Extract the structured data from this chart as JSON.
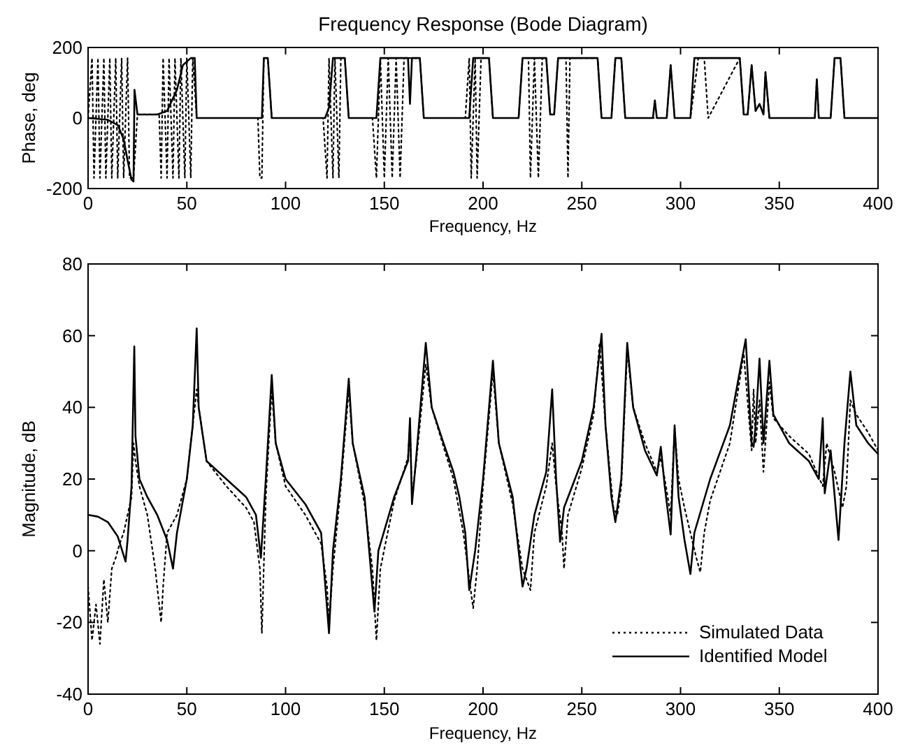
{
  "chart_data": [
    {
      "type": "line",
      "title": "Frequency Response (Bode Diagram)",
      "xlabel": "Frequency, Hz",
      "ylabel": "Phase, deg",
      "xlim": [
        0,
        400
      ],
      "xticks": [
        0,
        50,
        100,
        150,
        200,
        250,
        300,
        350,
        400
      ],
      "ylim": [
        -200,
        200
      ],
      "yticks": [
        -200,
        0,
        200
      ],
      "grid": false,
      "legend": false,
      "series": [
        {
          "color": "#000000",
          "line_style": "dotted",
          "x": [
            0,
            2,
            3,
            5,
            6,
            8,
            9,
            11,
            12,
            14,
            15,
            17,
            18,
            20,
            21,
            23,
            25,
            36,
            37,
            38,
            40,
            41,
            43,
            44,
            46,
            47,
            49,
            50,
            52,
            53,
            55,
            86,
            87,
            88,
            89,
            91,
            93,
            119,
            121,
            122,
            124,
            125,
            127,
            128,
            130,
            132,
            144,
            146,
            148,
            150,
            152,
            154,
            156,
            158,
            160,
            162,
            164,
            168,
            170,
            191,
            193,
            194,
            196,
            197,
            199,
            203,
            205,
            218,
            220,
            223,
            224,
            226,
            228,
            230,
            232,
            234,
            236,
            238,
            242,
            243,
            244,
            258,
            260,
            265,
            267,
            270,
            272,
            286,
            293,
            295,
            297,
            305,
            309,
            312,
            314,
            330,
            332,
            334,
            336,
            338,
            340,
            342,
            343,
            345,
            368,
            369,
            370,
            376,
            378,
            381,
            383,
            400
          ],
          "values": [
            0,
            170,
            -170,
            170,
            -170,
            170,
            -170,
            170,
            -170,
            170,
            -170,
            170,
            -170,
            170,
            -170,
            -170,
            10,
            10,
            -170,
            170,
            -170,
            170,
            -170,
            170,
            -170,
            170,
            -170,
            170,
            -170,
            170,
            0,
            0,
            -170,
            -170,
            170,
            170,
            0,
            0,
            -170,
            170,
            -170,
            170,
            -170,
            170,
            170,
            0,
            0,
            -170,
            170,
            -170,
            170,
            -170,
            170,
            -170,
            170,
            170,
            170,
            170,
            0,
            0,
            170,
            -170,
            170,
            -170,
            170,
            170,
            0,
            0,
            170,
            170,
            -170,
            170,
            -170,
            170,
            170,
            10,
            10,
            170,
            170,
            -170,
            170,
            170,
            0,
            0,
            170,
            170,
            0,
            0,
            0,
            150,
            0,
            0,
            170,
            170,
            0,
            170,
            10,
            10,
            150,
            20,
            40,
            10,
            130,
            0,
            0,
            110,
            0,
            0,
            170,
            170,
            0,
            0
          ]
        },
        {
          "color": "#000000",
          "line_style": "solid",
          "x": [
            0,
            10,
            15,
            18,
            20,
            22,
            23,
            23.5,
            25,
            35,
            40,
            45,
            48,
            52,
            54,
            55,
            80,
            85,
            88,
            89,
            91,
            93,
            120,
            122,
            124,
            130,
            132,
            146,
            148,
            160,
            162,
            163,
            164,
            168,
            170,
            193,
            195,
            203,
            205,
            218,
            220,
            232,
            234,
            236,
            238,
            258,
            260,
            265,
            267,
            270,
            272,
            286,
            287,
            288,
            293,
            295,
            297,
            305,
            307,
            330,
            332,
            334,
            336,
            338,
            340,
            342,
            343,
            345,
            368,
            369,
            370,
            376,
            378,
            381,
            383,
            400
          ],
          "values": [
            0,
            -5,
            -20,
            -60,
            -120,
            -175,
            -180,
            80,
            10,
            10,
            20,
            80,
            150,
            170,
            170,
            0,
            0,
            0,
            0,
            170,
            170,
            0,
            0,
            30,
            170,
            170,
            0,
            0,
            170,
            170,
            170,
            40,
            170,
            170,
            0,
            0,
            170,
            170,
            0,
            0,
            170,
            170,
            10,
            10,
            170,
            170,
            0,
            0,
            170,
            170,
            0,
            0,
            50,
            0,
            0,
            150,
            0,
            0,
            170,
            170,
            10,
            10,
            150,
            20,
            40,
            10,
            130,
            0,
            0,
            110,
            0,
            0,
            170,
            170,
            0,
            0
          ]
        }
      ]
    },
    {
      "type": "line",
      "xlabel": "Frequency, Hz",
      "ylabel": "Magnitude, dB",
      "xlim": [
        0,
        400
      ],
      "xticks": [
        0,
        50,
        100,
        150,
        200,
        250,
        300,
        350,
        400
      ],
      "ylim": [
        -40,
        80
      ],
      "yticks": [
        -40,
        -20,
        0,
        20,
        40,
        60,
        80
      ],
      "grid": false,
      "legend": "bottom right",
      "series": [
        {
          "name": "Simulated Data",
          "color": "#000000",
          "line_style": "dotted",
          "x": [
            0,
            2,
            4,
            6,
            8,
            10,
            12,
            14,
            16,
            18,
            20,
            22,
            23,
            24,
            26,
            30,
            34,
            37,
            38,
            40,
            43,
            45,
            50,
            53,
            55,
            56,
            60,
            70,
            80,
            84,
            87,
            88,
            90,
            93,
            95,
            100,
            110,
            118,
            121,
            122,
            124,
            128,
            132,
            134,
            140,
            144,
            146,
            148,
            155,
            162,
            163,
            164,
            166,
            171,
            174,
            180,
            185,
            190,
            194,
            195,
            197,
            200,
            205,
            208,
            215,
            220,
            222,
            224,
            226,
            232,
            235,
            237,
            240,
            241,
            243,
            250,
            256,
            259,
            262,
            266,
            268,
            270,
            273,
            276,
            282,
            288,
            290,
            292,
            295,
            297,
            299,
            302,
            308,
            310,
            312,
            315,
            325,
            332,
            336,
            337,
            338,
            340,
            342,
            345,
            347,
            355,
            365,
            372,
            374,
            378,
            382,
            384,
            386,
            389,
            395,
            400
          ],
          "values": [
            -10,
            -25,
            -15,
            -26,
            -8,
            -20,
            -5,
            -2,
            2,
            5,
            10,
            15,
            30,
            25,
            18,
            10,
            -5,
            -20,
            -10,
            5,
            8,
            10,
            20,
            35,
            45,
            40,
            25,
            18,
            12,
            8,
            -5,
            -23,
            15,
            45,
            30,
            18,
            10,
            2,
            -10,
            -20,
            -5,
            18,
            45,
            30,
            13,
            -5,
            -25,
            -5,
            14,
            26,
            35,
            15,
            24,
            52,
            40,
            29,
            20,
            5,
            -12,
            -16,
            -5,
            18,
            50,
            30,
            13,
            -5,
            -8,
            -11,
            5,
            18,
            30,
            18,
            5,
            -5,
            10,
            23,
            38,
            58,
            35,
            12,
            10,
            18,
            56,
            40,
            30,
            22,
            26,
            20,
            10,
            34,
            20,
            12,
            -2,
            -6,
            5,
            14,
            30,
            55,
            28,
            45,
            30,
            42,
            22,
            47,
            37,
            32,
            27,
            18,
            30,
            22,
            12,
            18,
            42,
            38,
            33,
            28
          ]
        },
        {
          "name": "Identified Model",
          "color": "#000000",
          "line_style": "solid",
          "x": [
            0,
            5,
            10,
            15,
            19,
            20,
            22,
            23.4,
            24,
            26,
            30,
            35,
            40,
            43,
            45,
            50,
            53,
            55,
            56,
            60,
            70,
            80,
            85,
            87.5,
            90,
            93,
            95,
            100,
            110,
            118,
            122,
            124,
            128,
            132,
            134,
            140,
            145,
            147,
            155,
            162,
            163,
            164,
            166,
            171,
            174,
            180,
            185,
            188,
            191,
            193,
            196,
            200,
            205,
            208,
            215,
            220,
            222,
            226,
            232,
            235,
            237,
            239,
            241,
            250,
            256,
            260,
            262,
            265,
            267,
            270,
            273,
            276,
            282,
            288,
            290,
            292,
            295,
            297,
            299,
            302,
            305,
            307,
            315,
            325,
            333,
            336,
            337,
            338,
            340,
            342,
            345,
            347,
            355,
            365,
            370,
            372,
            373,
            376,
            380,
            383,
            386,
            389,
            395,
            400
          ],
          "values": [
            10,
            9.5,
            8,
            4,
            -3,
            3,
            18,
            57,
            32,
            20,
            15,
            10,
            3,
            -5,
            5,
            20,
            35,
            62,
            40,
            25,
            20,
            15,
            10,
            -2,
            20,
            49,
            30,
            20,
            13,
            5,
            -23,
            0,
            20,
            48,
            30,
            15,
            -17,
            0,
            15,
            25,
            37,
            13,
            25,
            58,
            40,
            30,
            22,
            15,
            5,
            -11,
            0,
            20,
            53,
            30,
            15,
            -10,
            -5,
            10,
            22,
            45,
            20,
            2.5,
            12,
            25,
            40,
            60.5,
            35,
            15,
            8,
            20,
            58,
            40,
            28,
            21,
            29,
            18,
            4.5,
            35,
            15,
            3,
            -6.5,
            5,
            20,
            35,
            59,
            30,
            29,
            35,
            53.6,
            30,
            53,
            38,
            30,
            25,
            20,
            37,
            16,
            28,
            3,
            30,
            50,
            35,
            30,
            27
          ]
        }
      ]
    }
  ]
}
